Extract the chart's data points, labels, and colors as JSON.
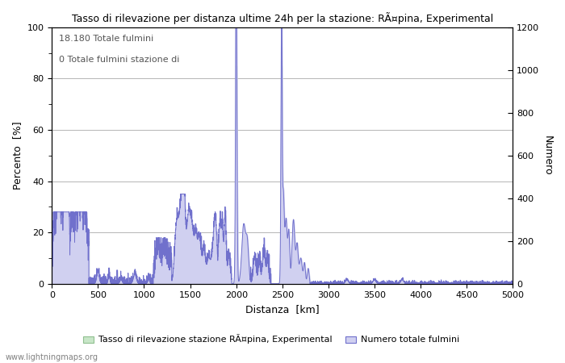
{
  "title": "Tasso di rilevazione per distanza ultime 24h per la stazione: RÃ¤pina, Experimental",
  "xlabel": "Distanza  [km]",
  "ylabel_left": "Percento  [%]",
  "ylabel_right": "Numero",
  "xlim": [
    0,
    5000
  ],
  "ylim_left": [
    0,
    100
  ],
  "ylim_right": [
    0,
    1200
  ],
  "annotation_line1": "18.180 Totale fulmini",
  "annotation_line2": "0 Totale fulmini stazione di",
  "legend_label1": "Tasso di rilevazione stazione RÃ¤pina, Experimental",
  "legend_label2": "Numero totale fulmini",
  "watermark": "www.lightningmaps.org",
  "green_color": "#c8e6c8",
  "blue_color": "#d0d0f0",
  "blue_line_color": "#7070cc",
  "green_line_color": "#90c090",
  "background_color": "#ffffff",
  "grid_color": "#999999",
  "yticks_left": [
    0,
    20,
    40,
    60,
    80,
    100
  ],
  "yticks_right": [
    0,
    200,
    400,
    600,
    800,
    1000,
    1200
  ],
  "xticks": [
    0,
    500,
    1000,
    1500,
    2000,
    2500,
    3000,
    3500,
    4000,
    4500,
    5000
  ]
}
